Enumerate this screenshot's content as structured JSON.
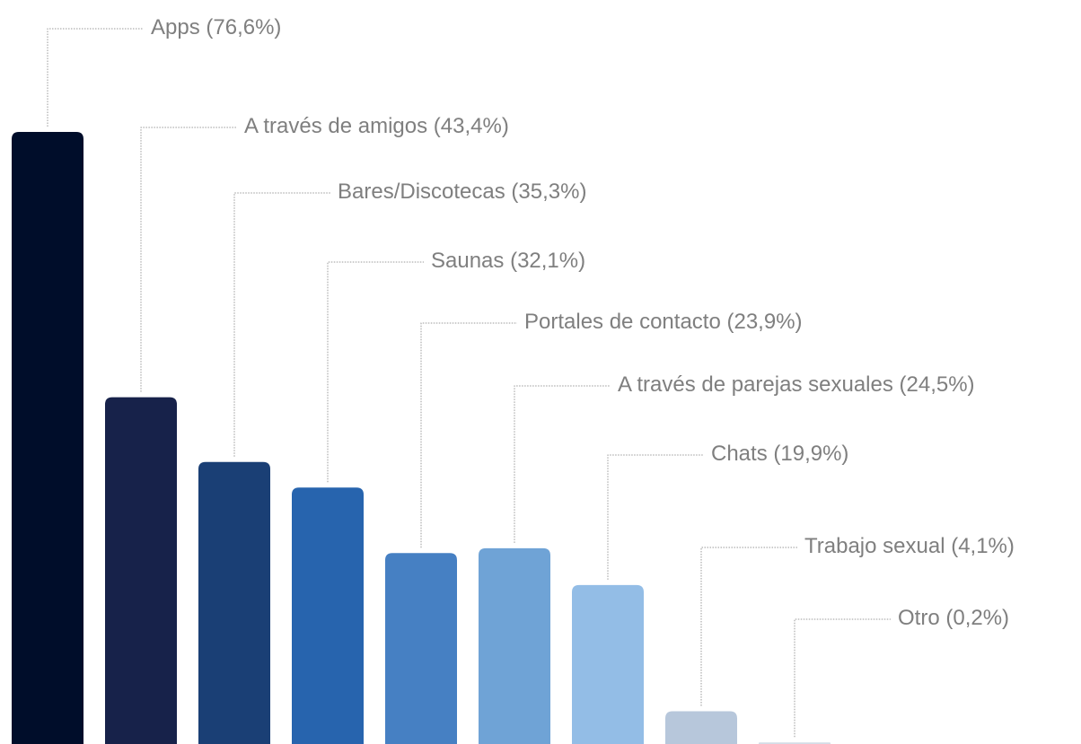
{
  "chart_data": {
    "type": "bar",
    "categories": [
      "Apps",
      "A través de amigos",
      "Bares/Discotecas",
      "Saunas",
      "Portales de contacto",
      "A través de parejas sexuales",
      "Chats",
      "Trabajo sexual",
      "Otro"
    ],
    "values": [
      76.6,
      43.4,
      35.3,
      32.1,
      23.9,
      24.5,
      19.9,
      4.1,
      0.2
    ],
    "value_labels": [
      "(76,6%)",
      "(43,4%)",
      "(35,3%)",
      "(32,1%)",
      "(23,9%)",
      "(24,5%)",
      "(19,9%)",
      "(4,1%)",
      "(0,2%)"
    ],
    "colors": [
      "#000d2a",
      "#17224a",
      "#1a3f75",
      "#2764ae",
      "#4680c3",
      "#6fa3d6",
      "#93bde6",
      "#b7c7db",
      "#d4dce6"
    ]
  }
}
